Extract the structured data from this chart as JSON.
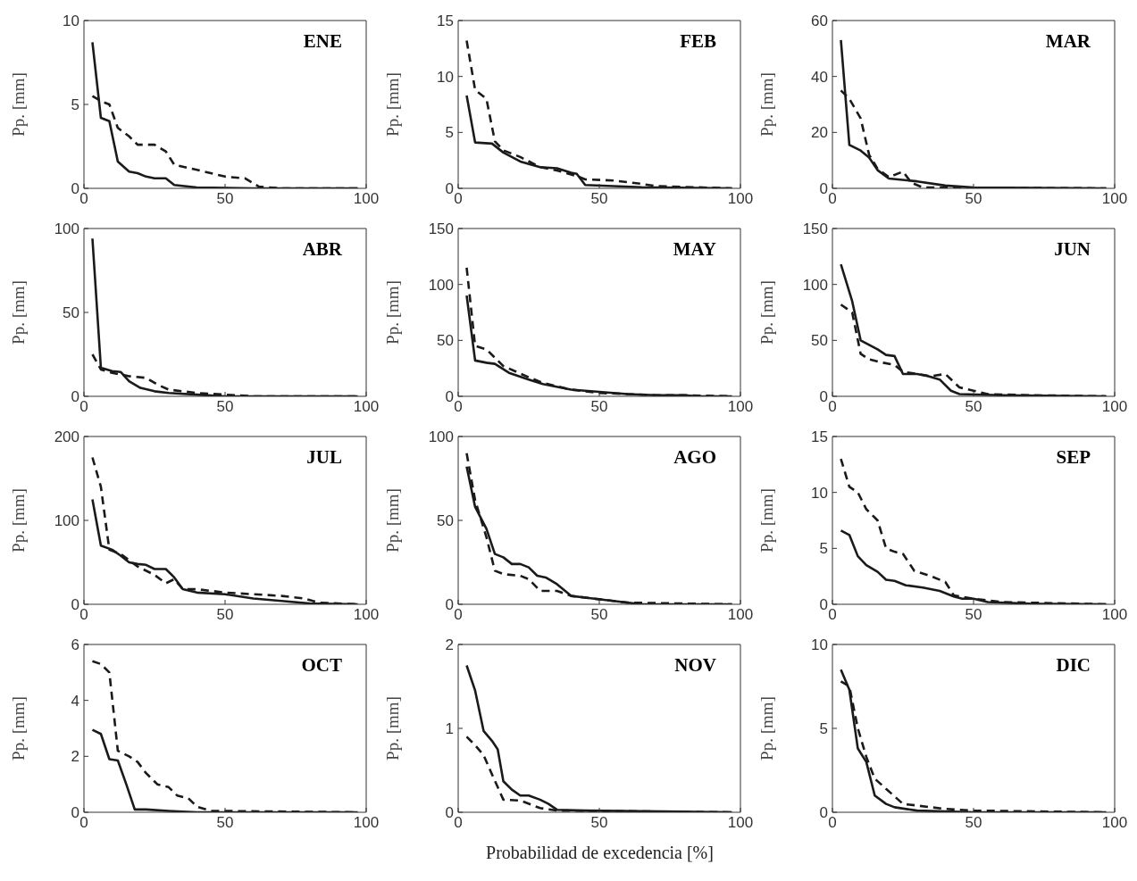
{
  "chart_data": [
    {
      "type": "line",
      "title": "ENE",
      "ylabel": "Pp. [mm]",
      "xlim": [
        0,
        100
      ],
      "xticks": [
        0,
        50,
        100
      ],
      "ylim": [
        0,
        10
      ],
      "yticks": [
        0,
        5,
        10
      ],
      "series": [
        {
          "color": "#1a1a1a",
          "line_style": "solid",
          "x": [
            3,
            6,
            9,
            12,
            16,
            19,
            22,
            25,
            29,
            32,
            40,
            60,
            97
          ],
          "values": [
            8.7,
            4.2,
            4.0,
            1.6,
            1.0,
            0.9,
            0.7,
            0.6,
            0.6,
            0.2,
            0.05,
            0,
            0
          ]
        },
        {
          "color": "#1a1a1a",
          "line_style": "dashed",
          "x": [
            3,
            6,
            9,
            12,
            16,
            19,
            25,
            29,
            32,
            40,
            50,
            57,
            62,
            70,
            97
          ],
          "values": [
            5.5,
            5.2,
            5.0,
            3.6,
            3.1,
            2.6,
            2.6,
            2.2,
            1.4,
            1.1,
            0.7,
            0.6,
            0.1,
            0,
            0
          ]
        }
      ]
    },
    {
      "type": "line",
      "title": "FEB",
      "ylabel": "Pp. [mm]",
      "xlim": [
        0,
        100
      ],
      "xticks": [
        0,
        50,
        100
      ],
      "ylim": [
        0,
        15
      ],
      "yticks": [
        0,
        5,
        10,
        15
      ],
      "series": [
        {
          "color": "#1a1a1a",
          "line_style": "solid",
          "x": [
            3,
            6,
            12,
            16,
            22,
            29,
            35,
            40,
            42,
            45,
            55,
            65,
            97
          ],
          "values": [
            8.3,
            4.1,
            4.0,
            3.2,
            2.4,
            1.9,
            1.8,
            1.4,
            1.3,
            0.3,
            0.2,
            0.1,
            0
          ]
        },
        {
          "color": "#1a1a1a",
          "line_style": "dashed",
          "x": [
            3,
            6,
            10,
            13,
            16,
            22,
            29,
            35,
            42,
            45,
            55,
            65,
            70,
            97
          ],
          "values": [
            13.2,
            8.8,
            8.0,
            4.2,
            3.4,
            2.8,
            1.9,
            1.6,
            1.1,
            0.8,
            0.7,
            0.4,
            0.2,
            0
          ]
        }
      ]
    },
    {
      "type": "line",
      "title": "MAR",
      "ylabel": "Pp. [mm]",
      "xlim": [
        0,
        100
      ],
      "xticks": [
        0,
        50,
        100
      ],
      "ylim": [
        0,
        60
      ],
      "yticks": [
        0,
        20,
        40,
        60
      ],
      "series": [
        {
          "color": "#1a1a1a",
          "line_style": "solid",
          "x": [
            3,
            6,
            10,
            13,
            16,
            20,
            30,
            40,
            50,
            97
          ],
          "values": [
            53,
            15.5,
            13.5,
            11,
            6.5,
            3.5,
            2.5,
            1,
            0.3,
            0
          ]
        },
        {
          "color": "#1a1a1a",
          "line_style": "dashed",
          "x": [
            3,
            6,
            10,
            13,
            16,
            20,
            25,
            28,
            32,
            97
          ],
          "values": [
            35,
            32,
            25,
            12,
            7,
            4,
            6,
            2,
            0.3,
            0
          ]
        }
      ]
    },
    {
      "type": "line",
      "title": "ABR",
      "ylabel": "Pp. [mm]",
      "xlim": [
        0,
        100
      ],
      "xticks": [
        0,
        50,
        100
      ],
      "ylim": [
        0,
        100
      ],
      "yticks": [
        0,
        50,
        100
      ],
      "series": [
        {
          "color": "#1a1a1a",
          "line_style": "solid",
          "x": [
            3,
            6,
            10,
            13,
            16,
            20,
            25,
            30,
            40,
            50,
            97
          ],
          "values": [
            94,
            17,
            15,
            14.5,
            9,
            5,
            3,
            2,
            1,
            0,
            0
          ]
        },
        {
          "color": "#1a1a1a",
          "line_style": "dashed",
          "x": [
            3,
            6,
            10,
            16,
            22,
            26,
            30,
            40,
            50,
            60,
            97
          ],
          "values": [
            25,
            16,
            14,
            12,
            11,
            7,
            4,
            2,
            1,
            0,
            0
          ]
        }
      ]
    },
    {
      "type": "line",
      "title": "MAY",
      "ylabel": "Pp. [mm]",
      "xlim": [
        0,
        100
      ],
      "xticks": [
        0,
        50,
        100
      ],
      "ylim": [
        0,
        150
      ],
      "yticks": [
        0,
        50,
        100,
        150
      ],
      "series": [
        {
          "color": "#1a1a1a",
          "line_style": "solid",
          "x": [
            3,
            6,
            10,
            13,
            18,
            25,
            30,
            40,
            50,
            60,
            70,
            80,
            85,
            97
          ],
          "values": [
            90,
            32,
            30,
            29,
            21,
            15,
            11,
            6,
            4,
            2,
            1,
            1,
            0,
            0
          ]
        },
        {
          "color": "#1a1a1a",
          "line_style": "dashed",
          "x": [
            3,
            6,
            10,
            16,
            25,
            30,
            40,
            50,
            60,
            70,
            80,
            97
          ],
          "values": [
            115,
            45,
            42,
            27,
            17,
            12,
            6,
            3,
            2,
            1,
            1,
            0
          ]
        }
      ]
    },
    {
      "type": "line",
      "title": "JUN",
      "ylabel": "Pp. [mm]",
      "xlim": [
        0,
        100
      ],
      "xticks": [
        0,
        50,
        100
      ],
      "ylim": [
        0,
        150
      ],
      "yticks": [
        0,
        50,
        100,
        150
      ],
      "series": [
        {
          "color": "#1a1a1a",
          "line_style": "solid",
          "x": [
            3,
            7,
            10,
            13,
            16,
            19,
            22,
            25,
            30,
            34,
            38,
            42,
            45,
            60,
            97
          ],
          "values": [
            118,
            85,
            50,
            46,
            42,
            37,
            36,
            20,
            20,
            18,
            15,
            5,
            2,
            1,
            0
          ]
        },
        {
          "color": "#1a1a1a",
          "line_style": "dashed",
          "x": [
            3,
            7,
            10,
            13,
            18,
            22,
            25,
            30,
            35,
            40,
            45,
            50,
            55,
            70,
            97
          ],
          "values": [
            82,
            75,
            38,
            33,
            30,
            28,
            22,
            20,
            18,
            20,
            8,
            5,
            2,
            1,
            0
          ]
        }
      ]
    },
    {
      "type": "line",
      "title": "JUL",
      "ylabel": "Pp. [mm]",
      "xlim": [
        0,
        100
      ],
      "xticks": [
        0,
        50,
        100
      ],
      "ylim": [
        0,
        200
      ],
      "yticks": [
        0,
        100,
        200
      ],
      "series": [
        {
          "color": "#1a1a1a",
          "line_style": "solid",
          "x": [
            3,
            6,
            10,
            13,
            16,
            19,
            22,
            25,
            29,
            32,
            35,
            40,
            50,
            60,
            70,
            80,
            97
          ],
          "values": [
            125,
            70,
            65,
            58,
            50,
            48,
            47,
            42,
            42,
            32,
            18,
            14,
            12,
            7,
            4,
            1,
            0
          ]
        },
        {
          "color": "#1a1a1a",
          "line_style": "dashed",
          "x": [
            3,
            6,
            9,
            13,
            19,
            25,
            29,
            32,
            35,
            40,
            50,
            60,
            70,
            78,
            83,
            97
          ],
          "values": [
            175,
            140,
            65,
            60,
            45,
            35,
            25,
            30,
            18,
            18,
            14,
            12,
            10,
            7,
            2,
            0
          ]
        }
      ]
    },
    {
      "type": "line",
      "title": "AGO",
      "ylabel": "Pp. [mm]",
      "xlim": [
        0,
        100
      ],
      "xticks": [
        0,
        50,
        100
      ],
      "ylim": [
        0,
        100
      ],
      "yticks": [
        0,
        50,
        100
      ],
      "series": [
        {
          "color": "#1a1a1a",
          "line_style": "solid",
          "x": [
            3,
            6,
            10,
            13,
            16,
            19,
            22,
            25,
            28,
            31,
            35,
            40,
            45,
            55,
            65,
            97
          ],
          "values": [
            82,
            58,
            45,
            30,
            28,
            24,
            24,
            22,
            17,
            16,
            12,
            5,
            4,
            2,
            0,
            0
          ]
        },
        {
          "color": "#1a1a1a",
          "line_style": "dashed",
          "x": [
            3,
            6,
            10,
            13,
            16,
            22,
            25,
            29,
            35,
            40,
            50,
            60,
            97
          ],
          "values": [
            90,
            62,
            40,
            20,
            18,
            17,
            15,
            8,
            8,
            5,
            3,
            1,
            0
          ]
        }
      ]
    },
    {
      "type": "line",
      "title": "SEP",
      "ylabel": "Pp. [mm]",
      "xlim": [
        0,
        100
      ],
      "xticks": [
        0,
        50,
        100
      ],
      "ylim": [
        0,
        15
      ],
      "yticks": [
        0,
        5,
        10,
        15
      ],
      "series": [
        {
          "color": "#1a1a1a",
          "line_style": "solid",
          "x": [
            3,
            6,
            9,
            12,
            16,
            19,
            22,
            26,
            32,
            38,
            43,
            46,
            50,
            55,
            70,
            97
          ],
          "values": [
            6.6,
            6.2,
            4.3,
            3.5,
            2.9,
            2.2,
            2.1,
            1.7,
            1.5,
            1.2,
            0.7,
            0.5,
            0.5,
            0.2,
            0.05,
            0
          ]
        },
        {
          "color": "#1a1a1a",
          "line_style": "dashed",
          "x": [
            3,
            6,
            9,
            12,
            16,
            19,
            22,
            25,
            29,
            35,
            40,
            43,
            50,
            60,
            97
          ],
          "values": [
            13,
            10.5,
            10,
            8.5,
            7.5,
            5,
            4.7,
            4.5,
            3,
            2.5,
            2,
            0.8,
            0.5,
            0.2,
            0
          ]
        }
      ]
    },
    {
      "type": "line",
      "title": "OCT",
      "ylabel": "Pp. [mm]",
      "xlim": [
        0,
        100
      ],
      "xticks": [
        0,
        50,
        100
      ],
      "ylim": [
        0,
        6
      ],
      "yticks": [
        0,
        2,
        4,
        6
      ],
      "series": [
        {
          "color": "#1a1a1a",
          "line_style": "solid",
          "x": [
            3,
            6,
            9,
            12,
            15,
            18,
            22,
            30,
            40,
            97
          ],
          "values": [
            2.95,
            2.8,
            1.9,
            1.85,
            1,
            0.1,
            0.1,
            0.05,
            0,
            0
          ]
        },
        {
          "color": "#1a1a1a",
          "line_style": "dashed",
          "x": [
            3,
            6,
            9,
            12,
            16,
            19,
            22,
            26,
            30,
            33,
            37,
            40,
            45,
            97
          ],
          "values": [
            5.4,
            5.3,
            5.0,
            2.2,
            2.0,
            1.8,
            1.4,
            1.0,
            0.9,
            0.6,
            0.5,
            0.2,
            0.05,
            0
          ]
        }
      ]
    },
    {
      "type": "line",
      "title": "NOV",
      "ylabel": "Pp. [mm]",
      "xlabel": "Probabilidad de excedencia [%]",
      "xlim": [
        0,
        100
      ],
      "xticks": [
        0,
        50,
        100
      ],
      "ylim": [
        0,
        2
      ],
      "yticks": [
        0,
        1,
        2
      ],
      "series": [
        {
          "color": "#1a1a1a",
          "line_style": "solid",
          "x": [
            3,
            6,
            9,
            12,
            14,
            16,
            19,
            22,
            25,
            29,
            32,
            35,
            45,
            97
          ],
          "values": [
            1.75,
            1.45,
            0.97,
            0.85,
            0.75,
            0.37,
            0.27,
            0.2,
            0.2,
            0.15,
            0.1,
            0.03,
            0.02,
            0
          ]
        },
        {
          "color": "#1a1a1a",
          "line_style": "dashed",
          "x": [
            3,
            6,
            9,
            12,
            14,
            16,
            22,
            29,
            35,
            97
          ],
          "values": [
            0.9,
            0.8,
            0.68,
            0.45,
            0.3,
            0.15,
            0.14,
            0.05,
            0.02,
            0
          ]
        }
      ]
    },
    {
      "type": "line",
      "title": "DIC",
      "ylabel": "Pp. [mm]",
      "xlim": [
        0,
        100
      ],
      "xticks": [
        0,
        50,
        100
      ],
      "ylim": [
        0,
        10
      ],
      "yticks": [
        0,
        5,
        10
      ],
      "series": [
        {
          "color": "#1a1a1a",
          "line_style": "solid",
          "x": [
            3,
            6,
            9,
            12,
            15,
            19,
            22,
            30,
            50,
            97
          ],
          "values": [
            8.5,
            7.3,
            3.8,
            3.0,
            1.0,
            0.5,
            0.3,
            0.1,
            0,
            0
          ]
        },
        {
          "color": "#1a1a1a",
          "line_style": "dashed",
          "x": [
            3,
            6,
            9,
            12,
            15,
            19,
            25,
            30,
            40,
            50,
            97
          ],
          "values": [
            7.8,
            7.5,
            5.0,
            3.3,
            2.0,
            1.4,
            0.5,
            0.4,
            0.2,
            0.1,
            0
          ]
        }
      ]
    }
  ]
}
